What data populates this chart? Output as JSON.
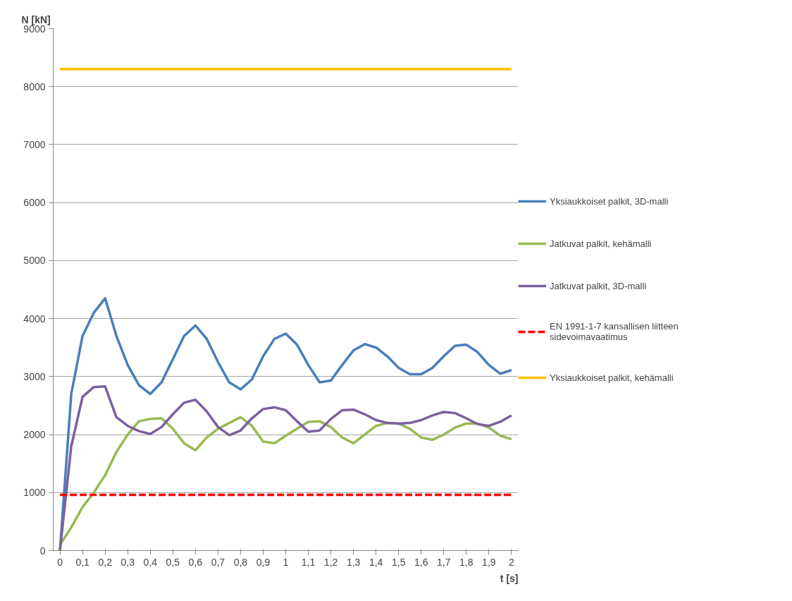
{
  "chart_data": {
    "type": "line",
    "xlabel": "t [s]",
    "ylabel": "N [kN]",
    "x": [
      0,
      0.05,
      0.1,
      0.15,
      0.2,
      0.25,
      0.3,
      0.35,
      0.4,
      0.45,
      0.5,
      0.55,
      0.6,
      0.65,
      0.7,
      0.75,
      0.8,
      0.85,
      0.9,
      0.95,
      1,
      1.05,
      1.1,
      1.15,
      1.2,
      1.25,
      1.3,
      1.35,
      1.4,
      1.45,
      1.5,
      1.55,
      1.6,
      1.65,
      1.7,
      1.75,
      1.8,
      1.85,
      1.9,
      1.95,
      2
    ],
    "series": [
      {
        "name": "Yksiaukkoiset palkit, 3D-malli",
        "color": "#4a7ebb",
        "values": [
          0,
          2700,
          3700,
          4100,
          4350,
          3700,
          3200,
          2850,
          2700,
          2900,
          3300,
          3700,
          3880,
          3650,
          3250,
          2900,
          2780,
          2950,
          3350,
          3650,
          3740,
          3550,
          3200,
          2900,
          2930,
          3200,
          3450,
          3560,
          3500,
          3350,
          3150,
          3040,
          3040,
          3150,
          3350,
          3530,
          3550,
          3420,
          3200,
          3050,
          3110
        ]
      },
      {
        "name": "Jatkuvat palkit, kehämalli",
        "color": "#98b954",
        "values": [
          100,
          400,
          750,
          1000,
          1300,
          1700,
          2000,
          2230,
          2270,
          2280,
          2100,
          1850,
          1730,
          1950,
          2100,
          2200,
          2300,
          2150,
          1880,
          1850,
          1980,
          2100,
          2220,
          2230,
          2130,
          1950,
          1850,
          2000,
          2150,
          2200,
          2190,
          2100,
          1950,
          1910,
          2000,
          2120,
          2190,
          2190,
          2120,
          1980,
          1920
        ]
      },
      {
        "name": "Jatkuvat palkit, 3D-malli",
        "color": "#7d5fa0",
        "values": [
          0,
          1800,
          2650,
          2820,
          2830,
          2300,
          2150,
          2060,
          2010,
          2130,
          2350,
          2550,
          2600,
          2400,
          2130,
          1990,
          2070,
          2280,
          2440,
          2470,
          2420,
          2230,
          2050,
          2070,
          2270,
          2420,
          2430,
          2350,
          2250,
          2200,
          2190,
          2200,
          2250,
          2330,
          2390,
          2370,
          2280,
          2180,
          2150,
          2220,
          2330
        ]
      },
      {
        "name": "EN 1991-1-7 kansallisen liitteen sidevoimavaatimus",
        "color": "#ff0000",
        "line_style": "dashed",
        "values": [
          960,
          960,
          960,
          960,
          960,
          960,
          960,
          960,
          960,
          960,
          960,
          960,
          960,
          960,
          960,
          960,
          960,
          960,
          960,
          960,
          960,
          960,
          960,
          960,
          960,
          960,
          960,
          960,
          960,
          960,
          960,
          960,
          960,
          960,
          960,
          960,
          960,
          960,
          960,
          960,
          960
        ]
      },
      {
        "name": "Yksiaukkoiset palkit, kehämalli",
        "color": "#ffc000",
        "values": [
          8300,
          8300,
          8300,
          8300,
          8300,
          8300,
          8300,
          8300,
          8300,
          8300,
          8300,
          8300,
          8300,
          8300,
          8300,
          8300,
          8300,
          8300,
          8300,
          8300,
          8300,
          8300,
          8300,
          8300,
          8300,
          8300,
          8300,
          8300,
          8300,
          8300,
          8300,
          8300,
          8300,
          8300,
          8300,
          8300,
          8300,
          8300,
          8300,
          8300,
          8300
        ]
      }
    ],
    "xlim": [
      -0.03,
      2.03
    ],
    "xticks": [
      0,
      {
        "value": 0.1,
        "label": "0,1"
      },
      {
        "value": 0.2,
        "label": "0,2"
      },
      {
        "value": 0.3,
        "label": "0,3"
      },
      {
        "value": 0.4,
        "label": "0,4"
      },
      {
        "value": 0.5,
        "label": "0,5"
      },
      {
        "value": 0.6,
        "label": "0,6"
      },
      {
        "value": 0.7,
        "label": "0,7"
      },
      {
        "value": 0.8,
        "label": "0,8"
      },
      {
        "value": 0.9,
        "label": "0,9"
      },
      1,
      {
        "value": 1.1,
        "label": "1,1"
      },
      {
        "value": 1.2,
        "label": "1,2"
      },
      {
        "value": 1.3,
        "label": "1,3"
      },
      {
        "value": 1.4,
        "label": "1,4"
      },
      {
        "value": 1.5,
        "label": "1,5"
      },
      {
        "value": 1.6,
        "label": "1,6"
      },
      {
        "value": 1.7,
        "label": "1,7"
      },
      {
        "value": 1.8,
        "label": "1,8"
      },
      {
        "value": 1.9,
        "label": "1,9"
      },
      2
    ],
    "ylim": [
      0,
      9000
    ],
    "yticks": [
      0,
      1000,
      2000,
      3000,
      4000,
      5000,
      6000,
      7000,
      8000,
      9000
    ],
    "grid": "y",
    "legend": "right",
    "line_style": "solid"
  }
}
